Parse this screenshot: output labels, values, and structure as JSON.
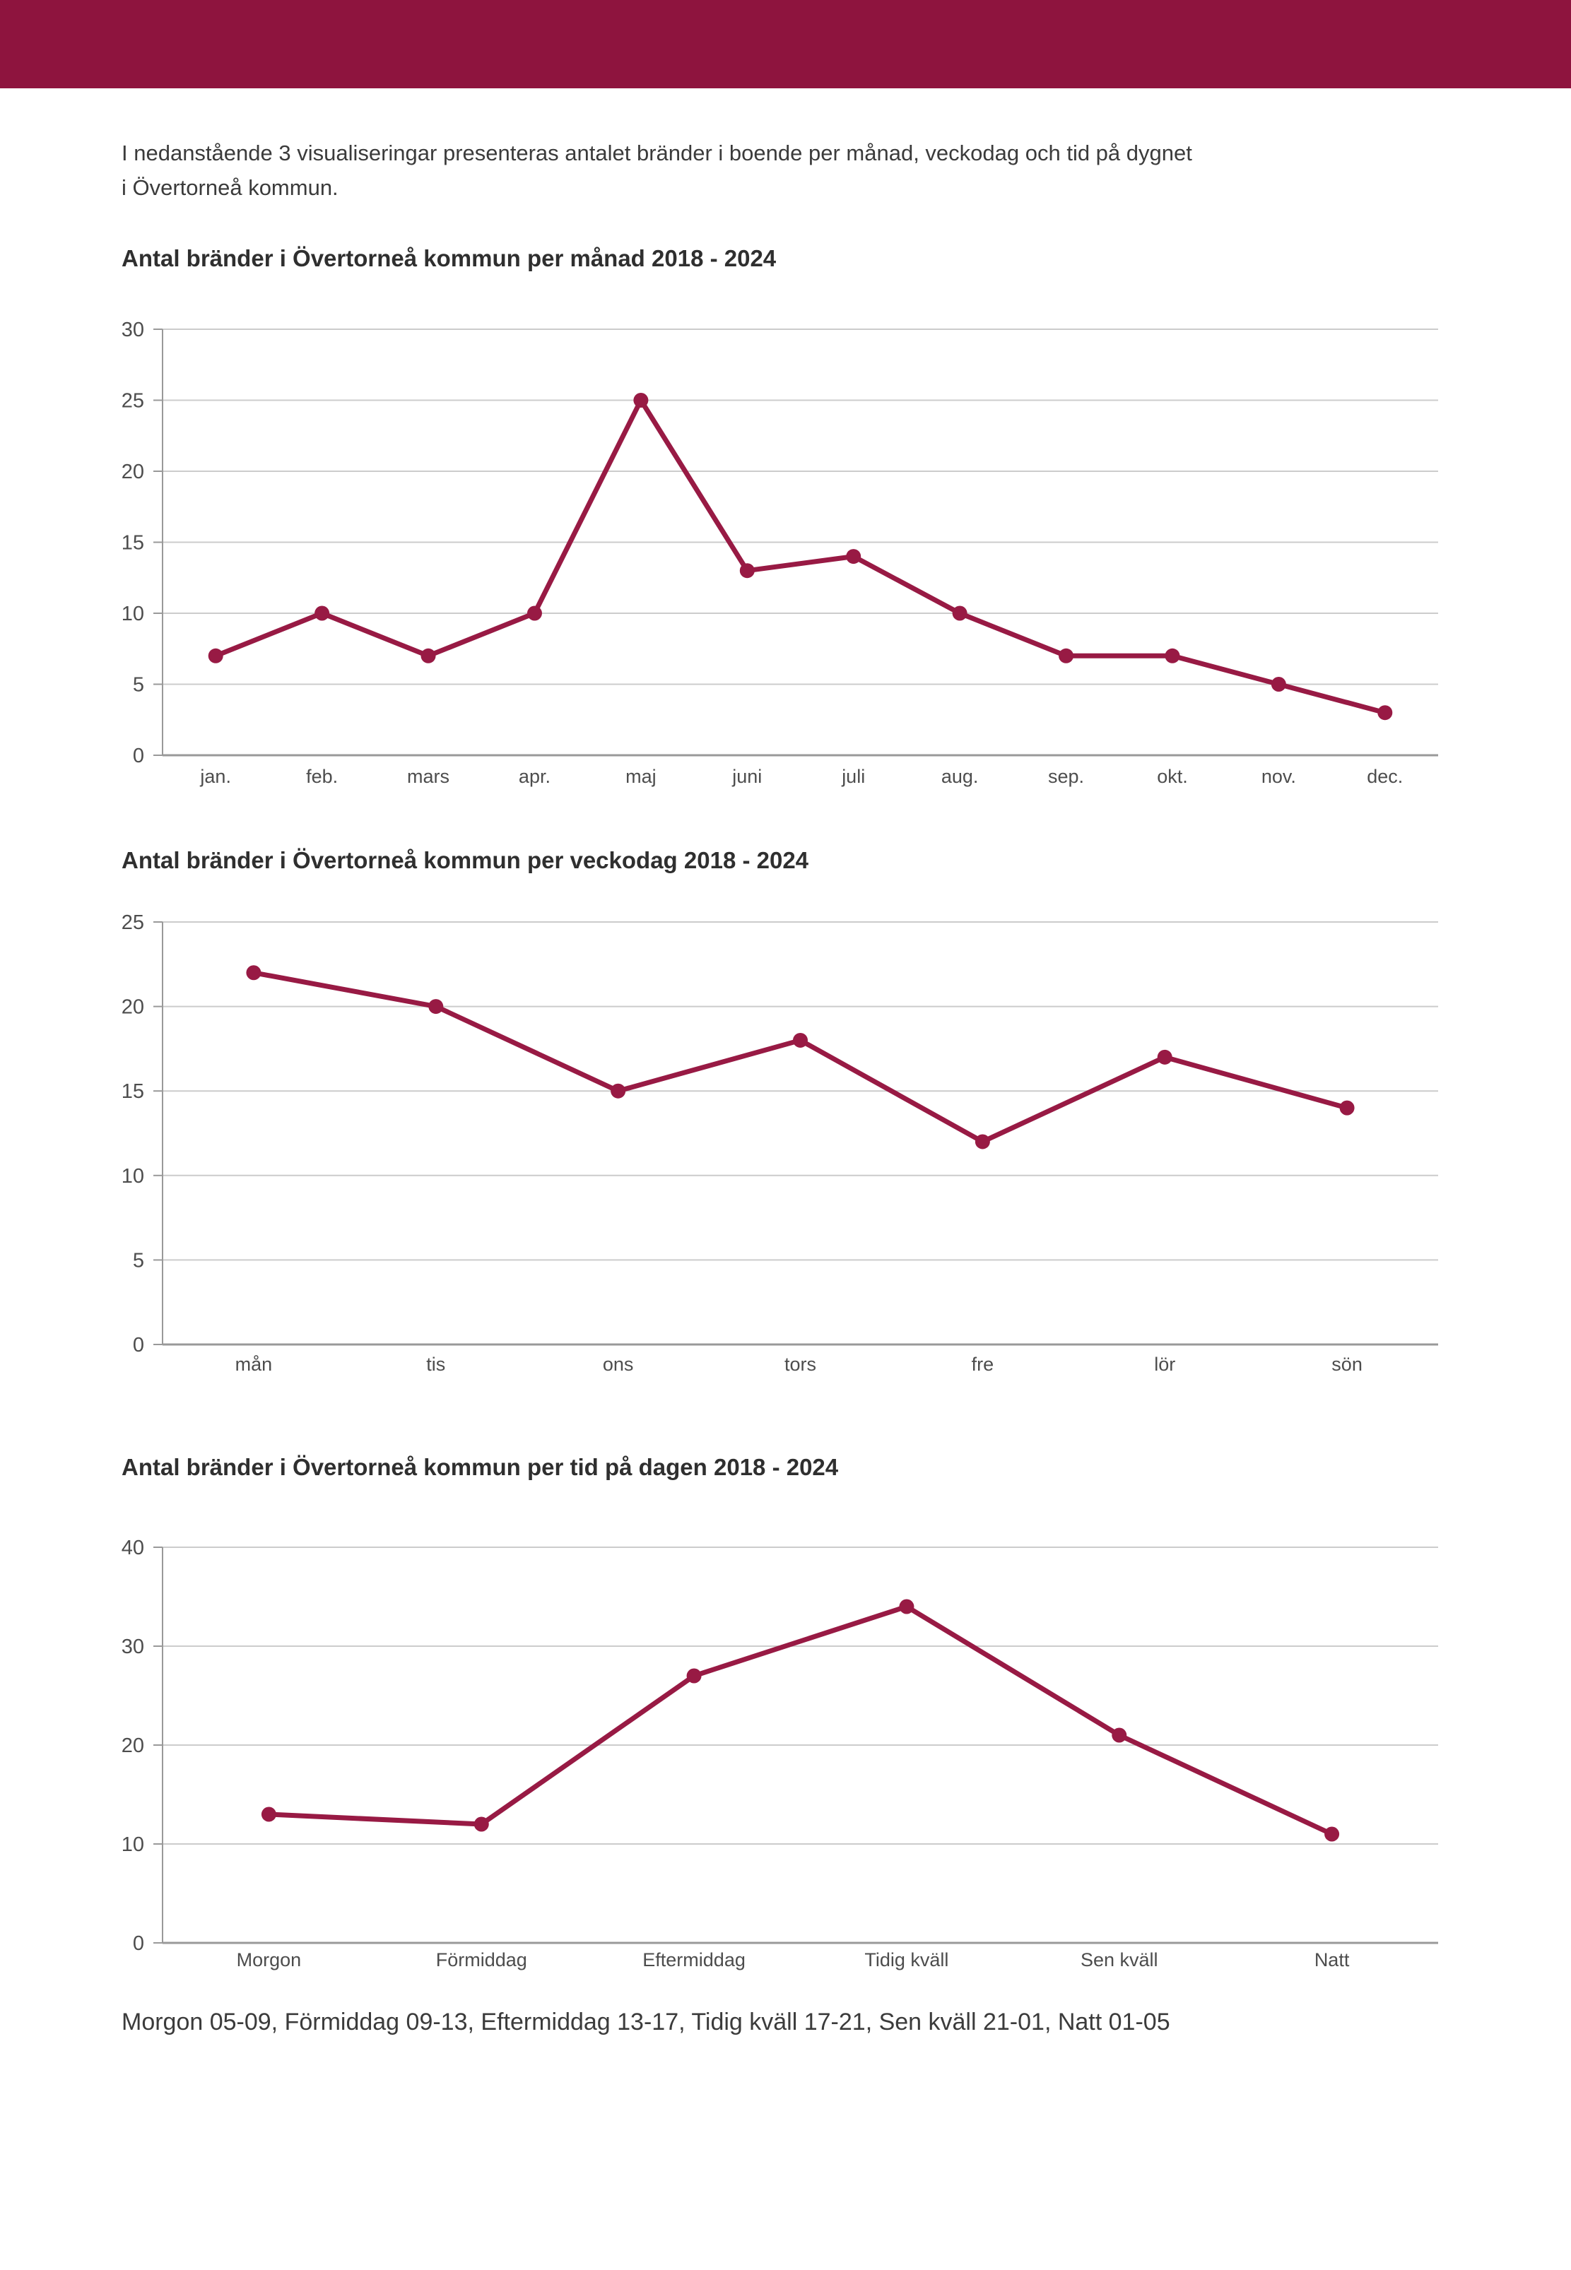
{
  "page": {
    "intro_line1": "I nedanstående 3 visualiseringar presenteras antalet bränder i boende per månad, veckodag och tid på dygnet",
    "intro_line2": "i Övertorneå kommun.",
    "footer_note": "Morgon 05-09, Förmiddag 09-13, Eftermiddag 13-17, Tidig kväll 17-21, Sen kväll 21-01, Natt 01-05"
  },
  "theme": {
    "header_bar_color": "#8e143e",
    "line_color": "#981a44",
    "grid_color": "#cccccc",
    "axis_color": "#999999",
    "tick_label_color": "#4d4d4d",
    "text_color": "#3b3b3b"
  },
  "chart_data": [
    {
      "type": "line",
      "title": "Antal bränder i Övertorneå kommun per månad 2018 - 2024",
      "categories": [
        "jan.",
        "feb.",
        "mars",
        "apr.",
        "maj",
        "juni",
        "juli",
        "aug.",
        "sep.",
        "okt.",
        "nov.",
        "dec."
      ],
      "values": [
        7,
        10,
        7,
        10,
        25,
        13,
        14,
        10,
        7,
        7,
        5,
        3
      ],
      "xlabel": "",
      "ylabel": "",
      "ylim": [
        0,
        30
      ],
      "ytick_step": 5,
      "grid": true,
      "legend": "none",
      "marker": "circle"
    },
    {
      "type": "line",
      "title": "Antal bränder i Övertorneå kommun per veckodag 2018 - 2024",
      "categories": [
        "mån",
        "tis",
        "ons",
        "tors",
        "fre",
        "lör",
        "sön"
      ],
      "values": [
        22,
        20,
        15,
        18,
        12,
        17,
        14
      ],
      "xlabel": "",
      "ylabel": "",
      "ylim": [
        0,
        25
      ],
      "ytick_step": 5,
      "grid": true,
      "legend": "none",
      "marker": "circle"
    },
    {
      "type": "line",
      "title": "Antal bränder i Övertorneå kommun per tid på dagen 2018 - 2024",
      "categories": [
        "Morgon",
        "Förmiddag",
        "Eftermiddag",
        "Tidig kväll",
        "Sen kväll",
        "Natt"
      ],
      "values": [
        13,
        12,
        27,
        34,
        21,
        11
      ],
      "xlabel": "",
      "ylabel": "",
      "ylim": [
        0,
        40
      ],
      "ytick_step": 10,
      "grid": true,
      "legend": "none",
      "marker": "circle"
    }
  ]
}
